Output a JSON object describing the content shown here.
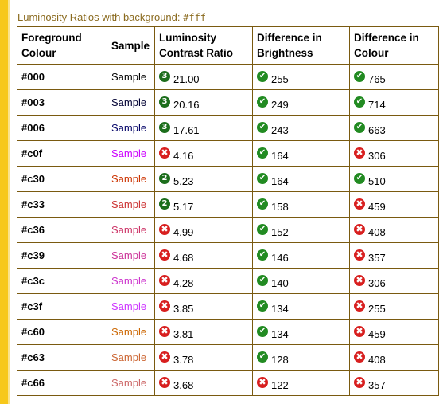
{
  "caption": {
    "text": "Luminosity Ratios with background:",
    "code": "#fff"
  },
  "headers": {
    "fg": [
      "Foreground",
      "Colour"
    ],
    "sample": [
      "Sample"
    ],
    "ratio": [
      "Luminosity",
      "Contrast Ratio"
    ],
    "brightness": [
      "Difference in",
      "Brightness"
    ],
    "colour": [
      "Difference in",
      "Colour"
    ]
  },
  "rows": [
    {
      "fg": "#000",
      "sample": "Sample",
      "sample_color": "#000000",
      "ratio_icon": "3",
      "ratio": "21.00",
      "br_icon": "pass",
      "brightness": "255",
      "col_icon": "pass",
      "colour": "765"
    },
    {
      "fg": "#003",
      "sample": "Sample",
      "sample_color": "#000033",
      "ratio_icon": "3",
      "ratio": "20.16",
      "br_icon": "pass",
      "brightness": "249",
      "col_icon": "pass",
      "colour": "714"
    },
    {
      "fg": "#006",
      "sample": "Sample",
      "sample_color": "#000066",
      "ratio_icon": "3",
      "ratio": "17.61",
      "br_icon": "pass",
      "brightness": "243",
      "col_icon": "pass",
      "colour": "663"
    },
    {
      "fg": "#c0f",
      "sample": "Sample",
      "sample_color": "#cc00ff",
      "ratio_icon": "fail",
      "ratio": "4.16",
      "br_icon": "pass",
      "brightness": "164",
      "col_icon": "fail",
      "colour": "306"
    },
    {
      "fg": "#c30",
      "sample": "Sample",
      "sample_color": "#cc3300",
      "ratio_icon": "2",
      "ratio": "5.23",
      "br_icon": "pass",
      "brightness": "164",
      "col_icon": "pass",
      "colour": "510"
    },
    {
      "fg": "#c33",
      "sample": "Sample",
      "sample_color": "#cc3333",
      "ratio_icon": "2",
      "ratio": "5.17",
      "br_icon": "pass",
      "brightness": "158",
      "col_icon": "fail",
      "colour": "459"
    },
    {
      "fg": "#c36",
      "sample": "Sample",
      "sample_color": "#cc3366",
      "ratio_icon": "fail",
      "ratio": "4.99",
      "br_icon": "pass",
      "brightness": "152",
      "col_icon": "fail",
      "colour": "408"
    },
    {
      "fg": "#c39",
      "sample": "Sample",
      "sample_color": "#cc3399",
      "ratio_icon": "fail",
      "ratio": "4.68",
      "br_icon": "pass",
      "brightness": "146",
      "col_icon": "fail",
      "colour": "357"
    },
    {
      "fg": "#c3c",
      "sample": "Sample",
      "sample_color": "#cc33cc",
      "ratio_icon": "fail",
      "ratio": "4.28",
      "br_icon": "pass",
      "brightness": "140",
      "col_icon": "fail",
      "colour": "306"
    },
    {
      "fg": "#c3f",
      "sample": "Sample",
      "sample_color": "#cc33ff",
      "ratio_icon": "fail",
      "ratio": "3.85",
      "br_icon": "pass",
      "brightness": "134",
      "col_icon": "fail",
      "colour": "255"
    },
    {
      "fg": "#c60",
      "sample": "Sample",
      "sample_color": "#cc6600",
      "ratio_icon": "fail",
      "ratio": "3.81",
      "br_icon": "pass",
      "brightness": "134",
      "col_icon": "fail",
      "colour": "459"
    },
    {
      "fg": "#c63",
      "sample": "Sample",
      "sample_color": "#cc6633",
      "ratio_icon": "fail",
      "ratio": "3.78",
      "br_icon": "pass",
      "brightness": "128",
      "col_icon": "fail",
      "colour": "408"
    },
    {
      "fg": "#c66",
      "sample": "Sample",
      "sample_color": "#cc6666",
      "ratio_icon": "fail",
      "ratio": "3.68",
      "br_icon": "fail",
      "brightness": "122",
      "col_icon": "fail",
      "colour": "357"
    }
  ]
}
